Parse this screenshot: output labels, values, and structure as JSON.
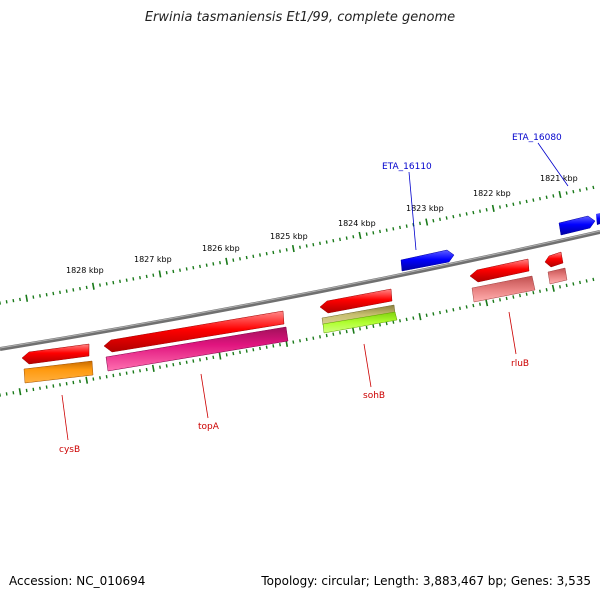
{
  "title": "Erwinia tasmaniensis Et1/99, complete genome",
  "footer": {
    "accession": "Accession: NC_010694",
    "info": "Topology: circular; Length: 3,883,467 bp; Genes: 3,535"
  },
  "ticks": [
    "1821 kbp",
    "1822 kbp",
    "1823 kbp",
    "1824 kbp",
    "1825 kbp",
    "1826 kbp",
    "1827 kbp",
    "1828 kbp"
  ],
  "labels": {
    "eta16080": "ETA_16080",
    "eta16110": "ETA_16110",
    "cysB": "cysB",
    "topA": "topA",
    "sohB": "sohB",
    "rluB": "rluB"
  },
  "colors": {
    "backbone": "#808080",
    "tick_ring": "#1a7a1a",
    "gene_red": "#ff0000",
    "cds_orange": "#ff8c00",
    "cds_magenta": "#e0147e",
    "cds_olive": "#b8b060",
    "cds_lime": "#a0f020",
    "cds_pink": "#e88080",
    "gene_blue": "#0000ff",
    "label_red": "#cc0000",
    "label_blue": "#0000cc"
  }
}
